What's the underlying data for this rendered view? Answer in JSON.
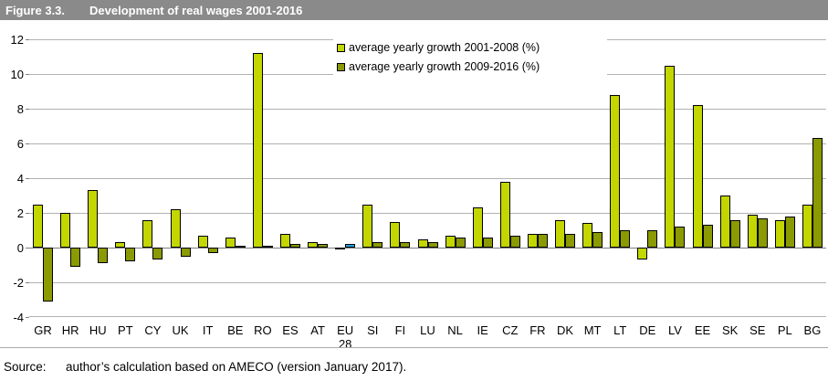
{
  "header": {
    "figure_label": "Figure 3.3.",
    "title": "Development of real wages 2001-2016"
  },
  "source": {
    "label": "Source:",
    "text": "author’s calculation based on AMECO (version January 2017)."
  },
  "colors": {
    "header_background": "#8a8a8a",
    "header_text": "#ffffff",
    "series1": "#c3d600",
    "series2": "#8a9a00",
    "eu28_series1": "#000000",
    "eu28_series2": "#21a1dc",
    "gridline": "#b2b2b2",
    "zero_line": "#7f7f7f",
    "bar_border": "#000000"
  },
  "chart_data": {
    "type": "bar",
    "title": "Development of real wages 2001-2016",
    "xlabel": "",
    "ylabel": "",
    "ylim": [
      -4,
      12
    ],
    "ytick_step": 2,
    "ytick_labels": [
      "12",
      "10",
      "8",
      "6",
      "4",
      "2",
      "0",
      "-2",
      "-4"
    ],
    "grid": true,
    "legend_position": "top-center-inside",
    "categories": [
      "GR",
      "HR",
      "HU",
      "PT",
      "CY",
      "UK",
      "IT",
      "BE",
      "RO",
      "ES",
      "AT",
      "EU 28",
      "SI",
      "FI",
      "LU",
      "NL",
      "IE",
      "CZ",
      "FR",
      "DK",
      "MT",
      "LT",
      "DE",
      "LV",
      "EE",
      "SK",
      "SE",
      "PL",
      "BG"
    ],
    "series": [
      {
        "name": "average yearly growth 2001-2008 (%)",
        "color": "#c3d600",
        "values": [
          2.5,
          2.0,
          3.3,
          0.3,
          1.6,
          2.2,
          0.7,
          0.6,
          11.2,
          0.8,
          0.3,
          -0.1,
          2.5,
          1.5,
          0.5,
          0.7,
          2.3,
          3.8,
          0.8,
          1.6,
          1.4,
          8.8,
          -0.7,
          10.5,
          8.2,
          3.0,
          1.9,
          1.6,
          2.5
        ]
      },
      {
        "name": "average yearly growth 2009-2016 (%)",
        "color": "#8a9a00",
        "values": [
          -3.1,
          -1.1,
          -0.9,
          -0.8,
          -0.7,
          -0.5,
          -0.3,
          0.1,
          0.1,
          0.2,
          0.2,
          0.2,
          0.3,
          0.3,
          0.3,
          0.6,
          0.6,
          0.7,
          0.8,
          0.8,
          0.9,
          1.0,
          1.0,
          1.2,
          1.3,
          1.6,
          1.7,
          1.8,
          6.3
        ]
      }
    ],
    "highlight": {
      "category": "EU 28",
      "series1_color": "#000000",
      "series2_color": "#21a1dc",
      "note": "EU 28 bars drawn in black (2001-2008) and blue (2009-2016)"
    }
  }
}
